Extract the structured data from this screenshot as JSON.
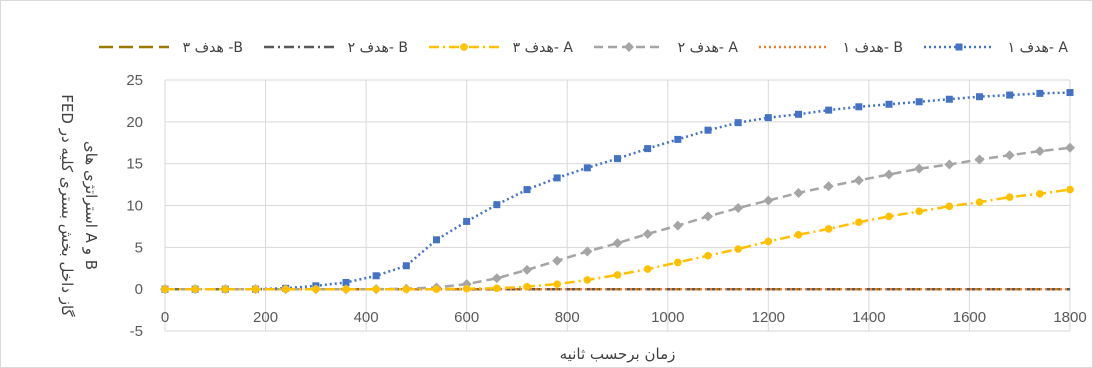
{
  "chart_data": {
    "type": "line",
    "title": "",
    "xlabel": "زمان برحسب ثانیه",
    "ylabel_lines": [
      "FED گاز داخل بخش بستری کلیه در",
      "استراتژی های A و B"
    ],
    "xlim": [
      0,
      1800
    ],
    "ylim": [
      -5,
      25
    ],
    "xticks": [
      0,
      200,
      400,
      600,
      800,
      1000,
      1200,
      1400,
      1600,
      1800
    ],
    "yticks": [
      -5,
      0,
      5,
      10,
      15,
      20,
      25
    ],
    "grid": true,
    "legend_position": "top",
    "series": [
      {
        "name": "هدف ۱- A",
        "color": "#4472C4",
        "style": "dotted",
        "marker": "square",
        "x": [
          0,
          60,
          120,
          180,
          240,
          300,
          360,
          420,
          480,
          540,
          600,
          660,
          720,
          780,
          840,
          900,
          960,
          1020,
          1080,
          1140,
          1200,
          1260,
          1320,
          1380,
          1440,
          1500,
          1560,
          1620,
          1680,
          1740,
          1800
        ],
        "y": [
          0,
          0,
          0,
          0,
          0.1,
          0.4,
          0.8,
          1.6,
          2.8,
          5.9,
          8.1,
          10.1,
          11.9,
          13.3,
          14.5,
          15.6,
          16.8,
          17.9,
          19.0,
          19.9,
          20.5,
          20.9,
          21.4,
          21.8,
          22.1,
          22.4,
          22.7,
          23.0,
          23.2,
          23.4,
          23.5
        ]
      },
      {
        "name": "هدف ۱- B",
        "color": "#ED7D31",
        "style": "dotted",
        "marker": "none",
        "x": [
          0,
          1800
        ],
        "y": [
          0,
          0
        ]
      },
      {
        "name": "هدف ۲- A",
        "color": "#A5A5A5",
        "style": "dashed",
        "marker": "diamond",
        "x": [
          0,
          60,
          120,
          180,
          240,
          300,
          360,
          420,
          480,
          540,
          600,
          660,
          720,
          780,
          840,
          900,
          960,
          1020,
          1080,
          1140,
          1200,
          1260,
          1320,
          1380,
          1440,
          1500,
          1560,
          1620,
          1680,
          1740,
          1800
        ],
        "y": [
          0,
          0,
          0,
          0,
          0,
          0,
          0,
          0,
          0.05,
          0.2,
          0.6,
          1.3,
          2.3,
          3.4,
          4.5,
          5.5,
          6.6,
          7.6,
          8.7,
          9.7,
          10.6,
          11.5,
          12.3,
          13.0,
          13.7,
          14.4,
          14.9,
          15.5,
          16.0,
          16.5,
          16.9
        ]
      },
      {
        "name": "هدف ۳- A",
        "color": "#FFC000",
        "style": "dashdot",
        "marker": "circle",
        "x": [
          0,
          60,
          120,
          180,
          240,
          300,
          360,
          420,
          480,
          540,
          600,
          660,
          720,
          780,
          840,
          900,
          960,
          1020,
          1080,
          1140,
          1200,
          1260,
          1320,
          1380,
          1440,
          1500,
          1560,
          1620,
          1680,
          1740,
          1800
        ],
        "y": [
          0,
          0,
          0,
          0,
          0,
          0,
          0,
          0,
          0,
          0,
          0.05,
          0.1,
          0.3,
          0.6,
          1.1,
          1.7,
          2.4,
          3.2,
          4.0,
          4.8,
          5.7,
          6.5,
          7.2,
          8.0,
          8.7,
          9.3,
          9.9,
          10.4,
          11.0,
          11.4,
          11.9
        ]
      },
      {
        "name": "هدف ۲- B",
        "color": "#595959",
        "style": "dashdot",
        "marker": "none",
        "x": [
          0,
          1800
        ],
        "y": [
          0,
          0
        ]
      },
      {
        "name": "هدف ۳ -B",
        "color": "#9C7A00",
        "style": "longdash",
        "marker": "none",
        "x": [
          0,
          1800
        ],
        "y": [
          0,
          0
        ]
      }
    ]
  }
}
